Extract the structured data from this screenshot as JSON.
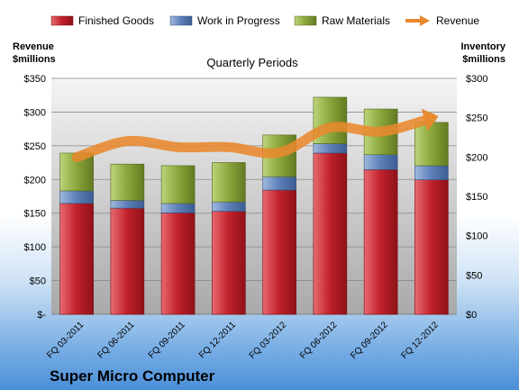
{
  "chart_data": {
    "type": "bar",
    "stacked": true,
    "title": "Quarterly Periods",
    "footer": "Super Micro Computer",
    "left_axis_label": [
      "Revenue",
      "$millions"
    ],
    "right_axis_label": [
      "Inventory",
      "$millions"
    ],
    "categories": [
      "FQ 03-2011",
      "FQ 06-2011",
      "FQ 09-2011",
      "FQ 12-2011",
      "FQ 03-2012",
      "FQ 06-2012",
      "FQ 09-2012",
      "FQ 12-2012"
    ],
    "left_ticks": [
      "$-",
      "$50",
      "$100",
      "$150",
      "$200",
      "$250",
      "$300",
      "$350"
    ],
    "right_ticks": [
      "$0",
      "$50",
      "$100",
      "$150",
      "$200",
      "$250",
      "$300"
    ],
    "left_range": [
      0,
      350
    ],
    "right_range": [
      0,
      300
    ],
    "series": [
      {
        "name": "Finished Goods",
        "axis": "right",
        "color": "#c0202a",
        "values": [
          141,
          135,
          129,
          131,
          158,
          205,
          184,
          171
        ]
      },
      {
        "name": "Work in Progress",
        "axis": "right",
        "color": "#5b7fb8",
        "values": [
          16,
          10,
          12,
          12,
          17,
          12,
          19,
          18
        ]
      },
      {
        "name": "Raw Materials",
        "axis": "right",
        "color": "#8aa63a",
        "values": [
          48,
          46,
          48,
          50,
          53,
          59,
          58,
          55
        ]
      },
      {
        "name": "Revenue",
        "axis": "left",
        "type": "line",
        "color": "#e8892e",
        "values": [
          233,
          257,
          248,
          248,
          240,
          277,
          271,
          291
        ]
      }
    ],
    "grid": true,
    "legend_position": "top"
  }
}
